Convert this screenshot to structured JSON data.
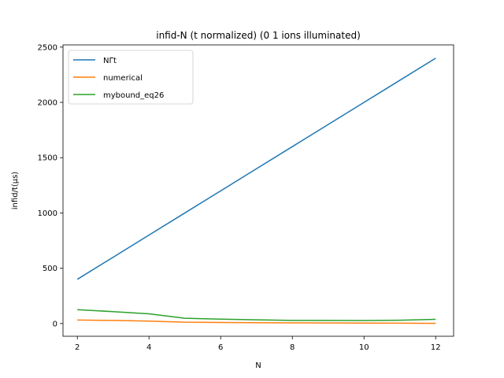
{
  "chart_data": {
    "type": "line",
    "title": "infid-N (t normalized) (0 1 ions illuminated)",
    "xlabel": "N",
    "ylabel": "infid/t(μs)",
    "xlim": [
      1.6,
      12.5
    ],
    "ylim": [
      -115,
      2520
    ],
    "xticks": [
      2,
      4,
      6,
      8,
      10,
      12
    ],
    "yticks": [
      0,
      500,
      1000,
      1500,
      2000,
      2500
    ],
    "grid": false,
    "legend_position": "top-left",
    "x": [
      2,
      3,
      4,
      5,
      6,
      7,
      8,
      9,
      10,
      11,
      12
    ],
    "series": [
      {
        "name": "NΓt",
        "color": "#1f77b4",
        "values": [
          400,
          600,
          800,
          1000,
          1200,
          1400,
          1600,
          1800,
          2000,
          2200,
          2400
        ]
      },
      {
        "name": "numerical",
        "color": "#ff7f0e",
        "values": [
          32,
          28,
          22,
          12,
          10,
          8,
          6,
          5,
          4,
          3,
          2
        ]
      },
      {
        "name": "mybound_eq26",
        "color": "#2ca02c",
        "values": [
          125,
          108,
          88,
          48,
          40,
          34,
          28,
          28,
          27,
          30,
          38
        ]
      }
    ]
  }
}
